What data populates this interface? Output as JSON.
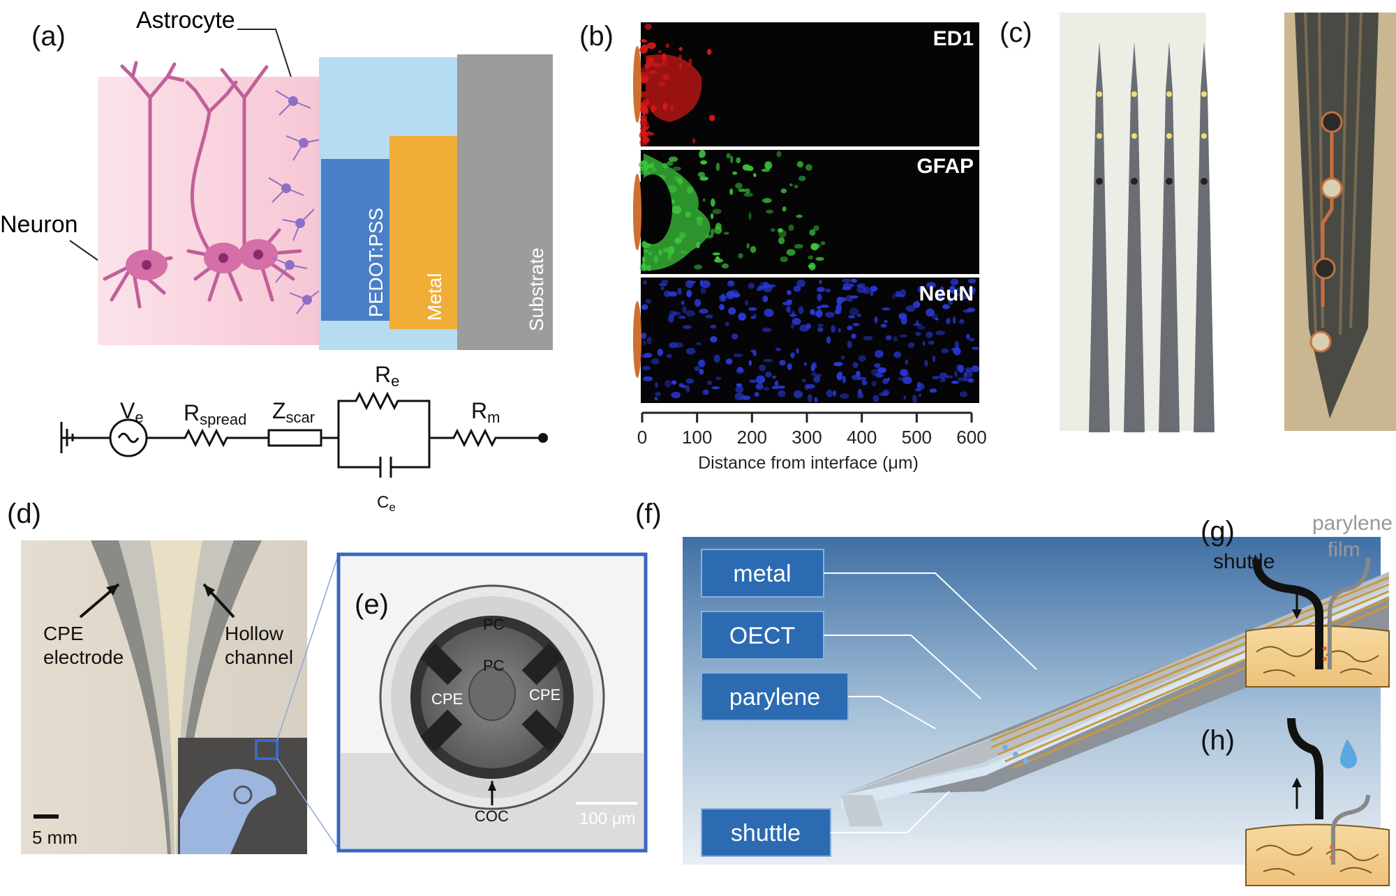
{
  "panels": {
    "a": {
      "label": "(a)",
      "astrocyte": "Astrocyte",
      "neuron": "Neuron",
      "layers": [
        "PEDOT:PSS",
        "Metal",
        "Substrate"
      ],
      "circuit": {
        "ve": "V",
        "ve_sub": "e",
        "rspread": "R",
        "rspread_sub": "spread",
        "zscar": "Z",
        "zscar_sub": "scar",
        "re": "R",
        "re_sub": "e",
        "ce": "C",
        "ce_sub": "e",
        "rm": "R",
        "rm_sub": "m"
      }
    },
    "b": {
      "label": "(b)",
      "stains": [
        "ED1",
        "GFAP",
        "NeuN"
      ],
      "colors": [
        "#d81818",
        "#3bc43b",
        "#2a3ad8"
      ],
      "axis_ticks": [
        "0",
        "100",
        "200",
        "300",
        "400",
        "500",
        "600"
      ],
      "axis_title": "Distance from interface (μm)"
    },
    "c": {
      "label": "(c)"
    },
    "d": {
      "label": "(d)",
      "cpe": [
        "CPE",
        "electrode"
      ],
      "hollow": [
        "Hollow",
        "channel"
      ],
      "scale": "5 mm"
    },
    "e": {
      "label": "(e)",
      "pc_outer": "PC",
      "pc_inner": "PC",
      "cpe_left": "CPE",
      "cpe_right": "CPE",
      "coc": "COC",
      "scale": "100 μm"
    },
    "f": {
      "label": "(f)",
      "boxes": [
        "metal",
        "OECT",
        "parylene",
        "shuttle"
      ]
    },
    "g": {
      "label": "(g)",
      "shuttle": "shuttle",
      "parylene": [
        "parylene",
        "film"
      ]
    },
    "h": {
      "label": "(h)"
    }
  }
}
